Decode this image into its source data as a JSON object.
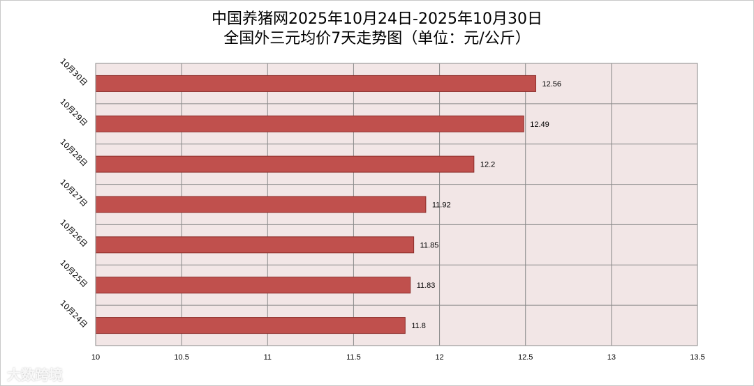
{
  "chart_data": {
    "type": "bar",
    "orientation": "horizontal",
    "title_line1": "中国养猪网2025年10月24日-2025年10月30日",
    "title_line2": "全国外三元均价7天走势图（单位：元/公斤）",
    "categories": [
      "10月30日",
      "10月29日",
      "10月28日",
      "10月27日",
      "10月26日",
      "10月25日",
      "10月24日"
    ],
    "values": [
      12.56,
      12.49,
      12.2,
      11.92,
      11.85,
      11.83,
      11.8
    ],
    "value_labels": [
      "12.56",
      "12.49",
      "12.2",
      "11.92",
      "11.85",
      "11.83",
      "11.8"
    ],
    "xlim": [
      10,
      13.5
    ],
    "xticks": [
      10,
      10.5,
      11,
      11.5,
      12,
      12.5,
      13,
      13.5
    ],
    "xtick_labels": [
      "10",
      "10.5",
      "11",
      "11.5",
      "12",
      "12.5",
      "13",
      "13.5"
    ],
    "grid": true,
    "colors": {
      "bar": "#c0504d",
      "bar_edge": "#8c2d2a",
      "plot_bg": "#f2e6e6",
      "grid": "#8a8a8a"
    }
  },
  "watermark": "大数跨境"
}
